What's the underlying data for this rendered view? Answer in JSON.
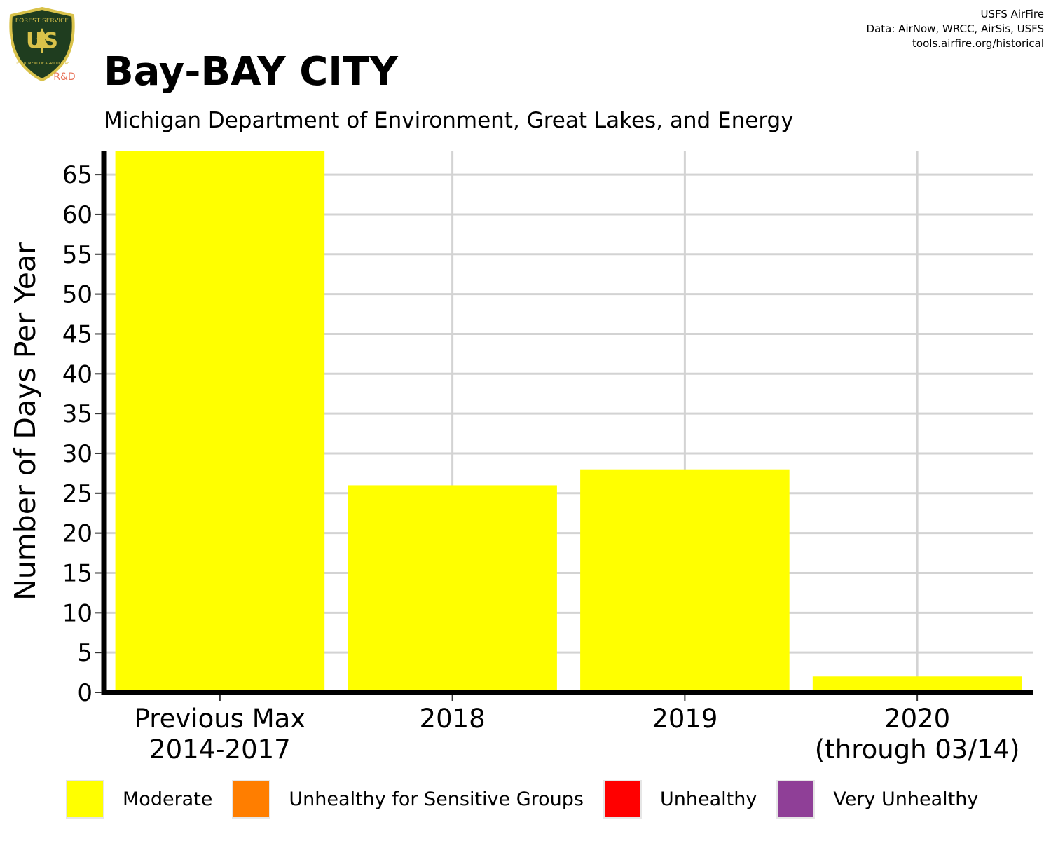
{
  "header": {
    "logo_text_top": "FOREST SERVICE",
    "logo_text_mid": "US",
    "logo_text_bottom": "DEPARTMENT OF AGRICULTURE",
    "logo_badge": "R&D",
    "title": "Bay-BAY CITY",
    "subtitle": "Michigan Department of Environment, Great Lakes, and Energy",
    "credits": [
      "USFS AirFire",
      "Data: AirNow, WRCC, AirSis, USFS",
      "tools.airfire.org/historical"
    ]
  },
  "colors": {
    "moderate": "#ffff00",
    "usg": "#ff7e00",
    "unhealthy": "#ff0000",
    "very_unhealthy": "#8f3f97",
    "grid": "#d3d3d3",
    "logo_green": "#1f3d1f",
    "logo_gold": "#d9c24a",
    "badge_red": "#e8735a"
  },
  "chart_data": {
    "type": "bar",
    "categories": [
      [
        "Previous Max",
        "2014-2017"
      ],
      [
        "2018"
      ],
      [
        "2019"
      ],
      [
        "2020",
        "(through 03/14)"
      ]
    ],
    "series": [
      {
        "name": "Moderate",
        "values": [
          68,
          26,
          28,
          2
        ]
      },
      {
        "name": "Unhealthy for Sensitive Groups",
        "values": [
          0,
          0,
          0,
          0
        ]
      },
      {
        "name": "Unhealthy",
        "values": [
          0,
          0,
          0,
          0
        ]
      },
      {
        "name": "Very Unhealthy",
        "values": [
          0,
          0,
          0,
          0
        ]
      }
    ],
    "ylabel": "Number of Days Per Year",
    "xlabel": "",
    "yticks": [
      0,
      5,
      10,
      15,
      20,
      25,
      30,
      35,
      40,
      45,
      50,
      55,
      60,
      65
    ],
    "ylim": [
      0,
      68
    ],
    "grid": true,
    "legend_position": "bottom"
  },
  "legend": {
    "items": [
      {
        "label": "Moderate",
        "color": "#ffff00"
      },
      {
        "label": "Unhealthy for Sensitive Groups",
        "color": "#ff7e00"
      },
      {
        "label": "Unhealthy",
        "color": "#ff0000"
      },
      {
        "label": "Very Unhealthy",
        "color": "#8f3f97"
      }
    ]
  }
}
